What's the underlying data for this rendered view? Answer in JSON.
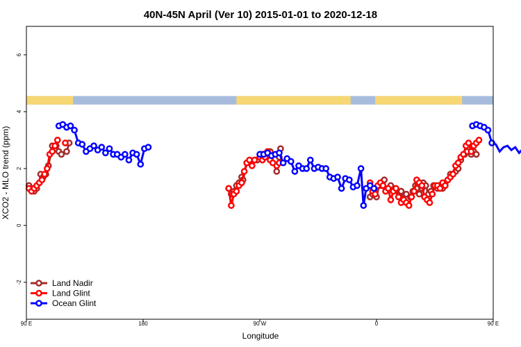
{
  "chart_data": {
    "type": "line",
    "title": "40N-45N April (Ver 10)   2015-01-01 to 2020-12-18",
    "xlabel": "Longitude",
    "ylabel": "XCO2 - MLO trend (ppm)",
    "xlim": [
      90,
      450
    ],
    "ylim": [
      -3.3,
      7
    ],
    "x_ticks": [
      {
        "value": 90,
        "label": "90 E"
      },
      {
        "value": 180,
        "label": "180"
      },
      {
        "value": 270,
        "label": "90 W"
      },
      {
        "value": 360,
        "label": "0"
      },
      {
        "value": 450,
        "label": "90 E"
      },
      {
        "value": 540,
        "label": "180"
      }
    ],
    "y_ticks": [
      {
        "value": -2,
        "label": "-2"
      },
      {
        "value": 0,
        "label": "0"
      },
      {
        "value": 2,
        "label": "2"
      },
      {
        "value": 4,
        "label": "4"
      },
      {
        "value": 6,
        "label": "6"
      }
    ],
    "legend_position": "bottom-left",
    "land_ocean_band": {
      "y_range": [
        4.25,
        4.55
      ],
      "ocean_color": "#a7bcdc",
      "land_color": "#f7d774",
      "land_segments": [
        [
          90,
          126
        ],
        [
          252,
          340
        ],
        [
          359,
          426
        ],
        [
          486,
          498
        ],
        [
          506,
          514
        ]
      ]
    },
    "series": [
      {
        "name": "Land Nadir",
        "color": "#a52a2a",
        "points": [
          [
            92,
            1.4
          ],
          [
            94,
            1.3
          ],
          [
            96,
            1.2
          ],
          [
            98,
            1.3
          ],
          [
            100,
            1.5
          ],
          [
            101,
            1.8
          ],
          [
            103,
            1.7
          ],
          [
            105,
            1.8
          ],
          [
            107,
            2.1
          ],
          [
            110,
            2.8
          ],
          [
            112,
            2.7
          ],
          [
            113,
            2.8
          ],
          [
            115,
            2.6
          ],
          [
            117,
            2.5
          ],
          [
            121,
            2.6
          ],
          [
            123,
            2.9
          ],
          [
            null,
            null
          ],
          [
            246,
            1.3
          ],
          [
            248,
            1.1
          ],
          [
            250,
            1.2
          ],
          [
            252,
            1.4
          ],
          [
            254,
            1.5
          ],
          [
            256,
            1.7
          ],
          [
            257,
            1.6
          ],
          [
            260,
            2.2
          ],
          [
            263,
            2.2
          ],
          [
            266,
            2.3
          ],
          [
            268,
            2.3
          ],
          [
            271,
            2.5
          ],
          [
            272,
            2.5
          ],
          [
            275,
            2.5
          ],
          [
            278,
            2.6
          ],
          [
            283,
            1.9
          ],
          [
            285,
            2.4
          ],
          [
            286,
            2.7
          ],
          [
            null,
            null
          ],
          [
            355,
            1.0
          ],
          [
            357,
            1.1
          ],
          [
            360,
            1.0
          ],
          [
            362,
            1.4
          ],
          [
            364,
            1.4
          ],
          [
            366,
            1.6
          ],
          [
            367,
            1.2
          ],
          [
            369,
            1.3
          ],
          [
            371,
            1.4
          ],
          [
            374,
            1.3
          ],
          [
            376,
            1.2
          ],
          [
            378,
            1.0
          ],
          [
            379,
            1.2
          ],
          [
            381,
            0.9
          ],
          [
            383,
            1.1
          ],
          [
            386,
            1.0
          ],
          [
            388,
            1.2
          ],
          [
            390,
            1.4
          ],
          [
            391,
            1.3
          ],
          [
            393,
            1.1
          ],
          [
            395,
            1.3
          ],
          [
            396,
            1.5
          ],
          [
            398,
            1.4
          ],
          [
            400,
            1.1
          ],
          [
            402,
            1.2
          ],
          [
            404,
            1.4
          ],
          [
            407,
            1.3
          ],
          [
            409,
            1.4
          ],
          [
            411,
            1.3
          ],
          [
            413,
            1.5
          ],
          [
            415,
            1.6
          ],
          [
            417,
            1.8
          ],
          [
            419,
            1.8
          ],
          [
            421,
            1.9
          ],
          [
            423,
            2.0
          ],
          [
            425,
            2.3
          ],
          [
            428,
            2.5
          ],
          [
            430,
            2.6
          ],
          [
            433,
            2.5
          ],
          [
            435,
            2.6
          ],
          [
            437,
            2.5
          ]
        ]
      },
      {
        "name": "Land Glint",
        "color": "#ff0000",
        "points": [
          [
            92,
            1.3
          ],
          [
            94,
            1.2
          ],
          [
            96,
            1.3
          ],
          [
            98,
            1.4
          ],
          [
            100,
            1.5
          ],
          [
            102,
            1.6
          ],
          [
            104,
            1.8
          ],
          [
            106,
            2.0
          ],
          [
            108,
            2.5
          ],
          [
            110,
            2.6
          ],
          [
            112,
            2.8
          ],
          [
            114,
            3.0
          ],
          [
            null,
            null
          ],
          [
            120,
            2.9
          ],
          [
            null,
            null
          ],
          [
            246,
            1.3
          ],
          [
            248,
            0.7
          ],
          [
            250,
            1.1
          ],
          [
            252,
            1.2
          ],
          [
            254,
            1.4
          ],
          [
            256,
            1.5
          ],
          [
            258,
            1.9
          ],
          [
            260,
            2.2
          ],
          [
            262,
            2.3
          ],
          [
            264,
            2.1
          ],
          [
            266,
            2.3
          ],
          [
            270,
            2.4
          ],
          [
            272,
            2.3
          ],
          [
            274,
            2.4
          ],
          [
            276,
            2.6
          ],
          [
            278,
            2.3
          ],
          [
            280,
            2.2
          ],
          [
            283,
            2.1
          ],
          [
            285,
            2.2
          ],
          [
            null,
            null
          ],
          [
            355,
            1.5
          ],
          [
            357,
            1.2
          ],
          [
            359,
            1.1
          ],
          [
            361,
            1.4
          ],
          [
            363,
            1.5
          ],
          [
            365,
            1.4
          ],
          [
            367,
            1.2
          ],
          [
            369,
            1.3
          ],
          [
            371,
            0.9
          ],
          [
            373,
            1.2
          ],
          [
            375,
            1.3
          ],
          [
            377,
            1.0
          ],
          [
            379,
            0.8
          ],
          [
            381,
            0.9
          ],
          [
            383,
            0.8
          ],
          [
            385,
            0.7
          ],
          [
            387,
            1.0
          ],
          [
            389,
            1.2
          ],
          [
            391,
            1.6
          ],
          [
            393,
            1.5
          ],
          [
            395,
            1.4
          ],
          [
            397,
            1.0
          ],
          [
            399,
            0.9
          ],
          [
            401,
            0.8
          ],
          [
            403,
            1.1
          ],
          [
            405,
            1.4
          ],
          [
            407,
            1.4
          ],
          [
            409,
            1.3
          ],
          [
            411,
            1.5
          ],
          [
            413,
            1.4
          ],
          [
            415,
            1.6
          ],
          [
            417,
            1.7
          ],
          [
            419,
            1.8
          ],
          [
            421,
            2.1
          ],
          [
            423,
            2.2
          ],
          [
            425,
            2.4
          ],
          [
            427,
            2.5
          ],
          [
            429,
            2.8
          ],
          [
            431,
            2.9
          ],
          [
            433,
            2.6
          ],
          [
            435,
            2.8
          ],
          [
            437,
            2.9
          ],
          [
            439,
            3.0
          ]
        ]
      },
      {
        "name": "Ocean Glint",
        "color": "#0000ff",
        "points": [
          [
            115,
            3.5
          ],
          [
            118,
            3.55
          ],
          [
            121,
            3.45
          ],
          [
            124,
            3.5
          ],
          [
            127,
            3.35
          ],
          [
            130,
            2.9
          ],
          [
            133,
            2.85
          ],
          [
            136,
            2.6
          ],
          [
            139,
            2.7
          ],
          [
            142,
            2.8
          ],
          [
            145,
            2.65
          ],
          [
            148,
            2.75
          ],
          [
            151,
            2.55
          ],
          [
            154,
            2.7
          ],
          [
            157,
            2.5
          ],
          [
            160,
            2.5
          ],
          [
            163,
            2.4
          ],
          [
            166,
            2.5
          ],
          [
            169,
            2.3
          ],
          [
            172,
            2.55
          ],
          [
            175,
            2.5
          ],
          [
            178,
            2.15
          ],
          [
            181,
            2.7
          ],
          [
            184,
            2.75
          ],
          [
            null,
            null
          ],
          [
            270,
            2.5
          ],
          [
            273,
            2.5
          ],
          [
            276,
            2.55
          ],
          [
            279,
            2.45
          ],
          [
            282,
            2.5
          ],
          [
            285,
            2.55
          ],
          [
            288,
            2.2
          ],
          [
            291,
            2.35
          ],
          [
            294,
            2.25
          ],
          [
            297,
            1.9
          ],
          [
            300,
            2.1
          ],
          [
            303,
            2.0
          ],
          [
            306,
            2.0
          ],
          [
            309,
            2.3
          ],
          [
            312,
            2.0
          ],
          [
            315,
            2.05
          ],
          [
            318,
            2.0
          ],
          [
            321,
            2.0
          ],
          [
            324,
            1.7
          ],
          [
            327,
            1.65
          ],
          [
            330,
            1.7
          ],
          [
            333,
            1.3
          ],
          [
            336,
            1.65
          ],
          [
            339,
            1.6
          ],
          [
            342,
            1.35
          ],
          [
            345,
            1.4
          ],
          [
            348,
            2.0
          ],
          [
            350,
            0.7
          ],
          [
            352,
            1.3
          ],
          [
            355,
            1.4
          ],
          [
            358,
            1.3
          ],
          [
            null,
            null
          ],
          [
            434,
            3.5
          ],
          [
            437,
            3.55
          ],
          [
            440,
            3.5
          ],
          [
            443,
            3.45
          ],
          [
            446,
            3.35
          ],
          [
            449,
            2.9
          ],
          [
            452,
            2.85
          ],
          [
            455,
            2.6
          ],
          [
            458,
            2.75
          ],
          [
            461,
            2.8
          ],
          [
            464,
            2.65
          ],
          [
            467,
            2.75
          ],
          [
            470,
            2.55
          ],
          [
            473,
            2.7
          ],
          [
            476,
            2.5
          ],
          [
            479,
            2.45
          ],
          [
            482,
            2.3
          ]
        ]
      }
    ]
  }
}
